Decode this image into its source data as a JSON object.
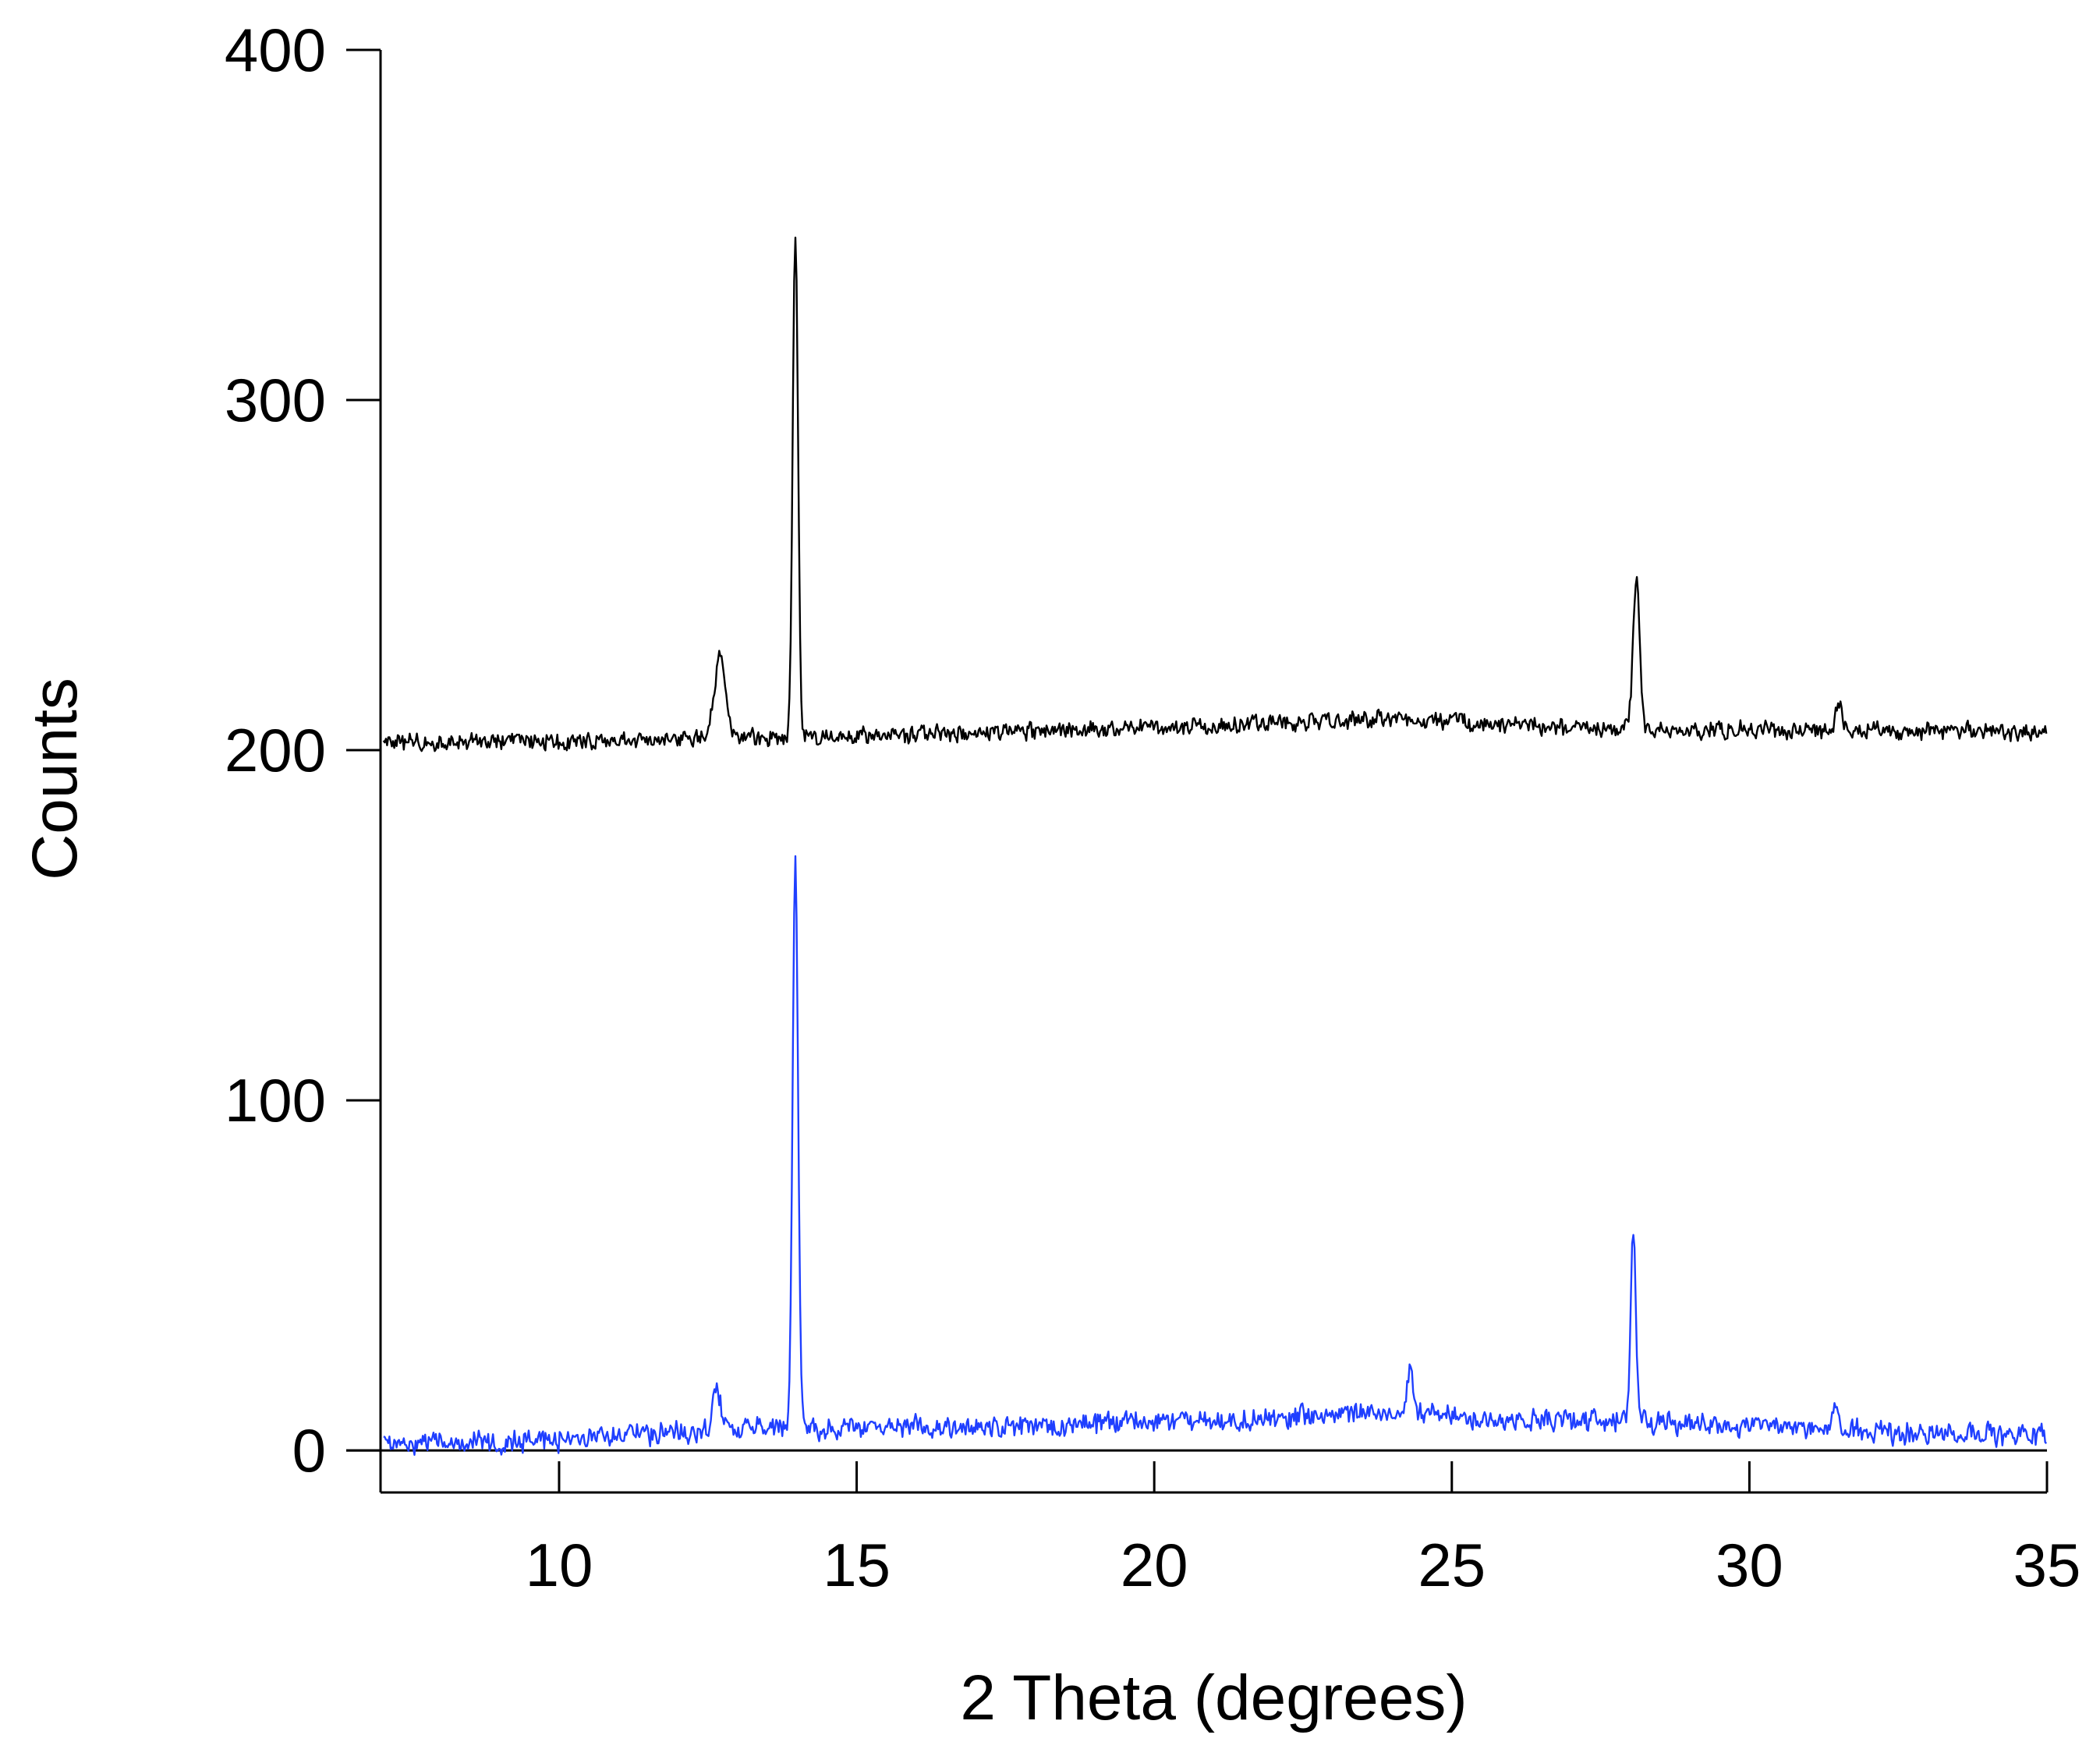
{
  "chart_data": {
    "type": "line",
    "title": "",
    "xlabel": "2 Theta  (degrees)",
    "ylabel": "Counts",
    "xlim": [
      7,
      35
    ],
    "ylim": [
      -12,
      400
    ],
    "xticks": [
      10,
      15,
      20,
      25,
      30,
      35
    ],
    "yticks": [
      0,
      100,
      200,
      300,
      400
    ],
    "grid": false,
    "legend": "none",
    "zero_line": true,
    "series": [
      {
        "color": "#000000",
        "baseline": [
          [
            7,
            202
          ],
          [
            12,
            203
          ],
          [
            17,
            205
          ],
          [
            22,
            207.5
          ],
          [
            24,
            209
          ],
          [
            26,
            207
          ],
          [
            28,
            206
          ],
          [
            30,
            206
          ],
          [
            35,
            205
          ]
        ],
        "noise": 2.5,
        "peaks": [
          {
            "x": 12.7,
            "height": 24,
            "width": 0.09
          },
          {
            "x": 13.97,
            "height": 143,
            "width": 0.045
          },
          {
            "x": 28.1,
            "height": 42,
            "width": 0.055
          },
          {
            "x": 31.5,
            "height": 8,
            "width": 0.05
          }
        ]
      },
      {
        "color": "#1f3fff",
        "baseline": [
          [
            7,
            2
          ],
          [
            10,
            3
          ],
          [
            13,
            6
          ],
          [
            18,
            7
          ],
          [
            22,
            9
          ],
          [
            24,
            11
          ],
          [
            26,
            9
          ],
          [
            28,
            8
          ],
          [
            31,
            6
          ],
          [
            35,
            4
          ]
        ],
        "noise": 3.2,
        "peaks": [
          {
            "x": 12.65,
            "height": 12,
            "width": 0.07
          },
          {
            "x": 13.97,
            "height": 162,
            "width": 0.045
          },
          {
            "x": 24.3,
            "height": 12,
            "width": 0.05
          },
          {
            "x": 28.05,
            "height": 55,
            "width": 0.045
          },
          {
            "x": 31.45,
            "height": 8,
            "width": 0.05
          }
        ]
      }
    ]
  }
}
